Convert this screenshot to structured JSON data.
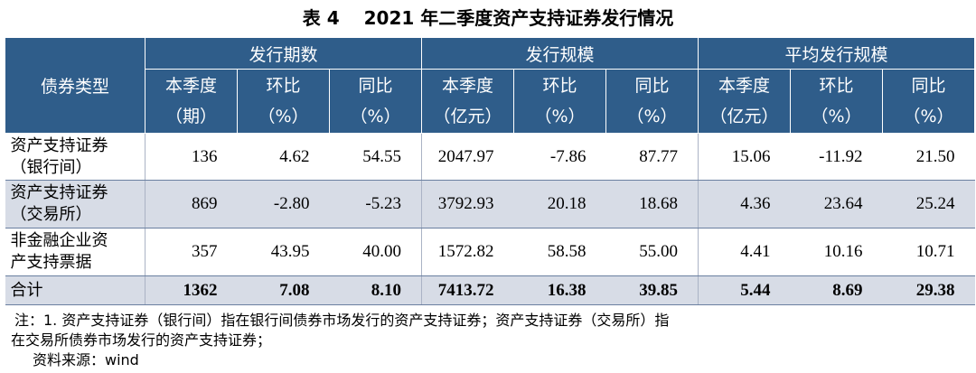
{
  "title": "表 4　 2021 年二季度资产支持证券发行情况",
  "table": {
    "first_header": "债券类型",
    "group_headers": [
      "发行期数",
      "发行规模",
      "平均发行规模"
    ],
    "sub_headers": [
      [
        "本季度",
        "（期）"
      ],
      [
        "环比",
        "（%）"
      ],
      [
        "同比",
        "（%）"
      ],
      [
        "本季度",
        "（亿元）"
      ],
      [
        "环比",
        "（%）"
      ],
      [
        "同比",
        "（%）"
      ],
      [
        "本季度",
        "（亿元）"
      ],
      [
        "环比",
        "（%）"
      ],
      [
        "同比",
        "（%）"
      ]
    ],
    "rows": [
      {
        "label": [
          "资产支持证券",
          "（银行间）"
        ],
        "values": [
          "136",
          "4.62",
          "54.55",
          "2047.97",
          "-7.86",
          "87.77",
          "15.06",
          "-11.92",
          "21.50"
        ]
      },
      {
        "label": [
          "资产支持证券",
          "（交易所）"
        ],
        "values": [
          "869",
          "-2.80",
          "-5.23",
          "3792.93",
          "20.18",
          "18.68",
          "4.36",
          "23.64",
          "25.24"
        ]
      },
      {
        "label": [
          "非金融企业资",
          "产支持票据"
        ],
        "values": [
          "357",
          "43.95",
          "40.00",
          "1572.82",
          "58.58",
          "55.00",
          "4.41",
          "10.16",
          "10.71"
        ]
      },
      {
        "label": [
          "合计"
        ],
        "values": [
          "1362",
          "7.08",
          "8.10",
          "7413.72",
          "16.38",
          "39.85",
          "5.44",
          "8.69",
          "29.38"
        ]
      }
    ]
  },
  "notes": [
    "注：1. 资产支持证券（银行间）指在银行间债券市场发行的资产支持证券；资产支持证券（交易所）指",
    "在交易所债券市场发行的资产支持证券；",
    "资料来源：wind"
  ]
}
